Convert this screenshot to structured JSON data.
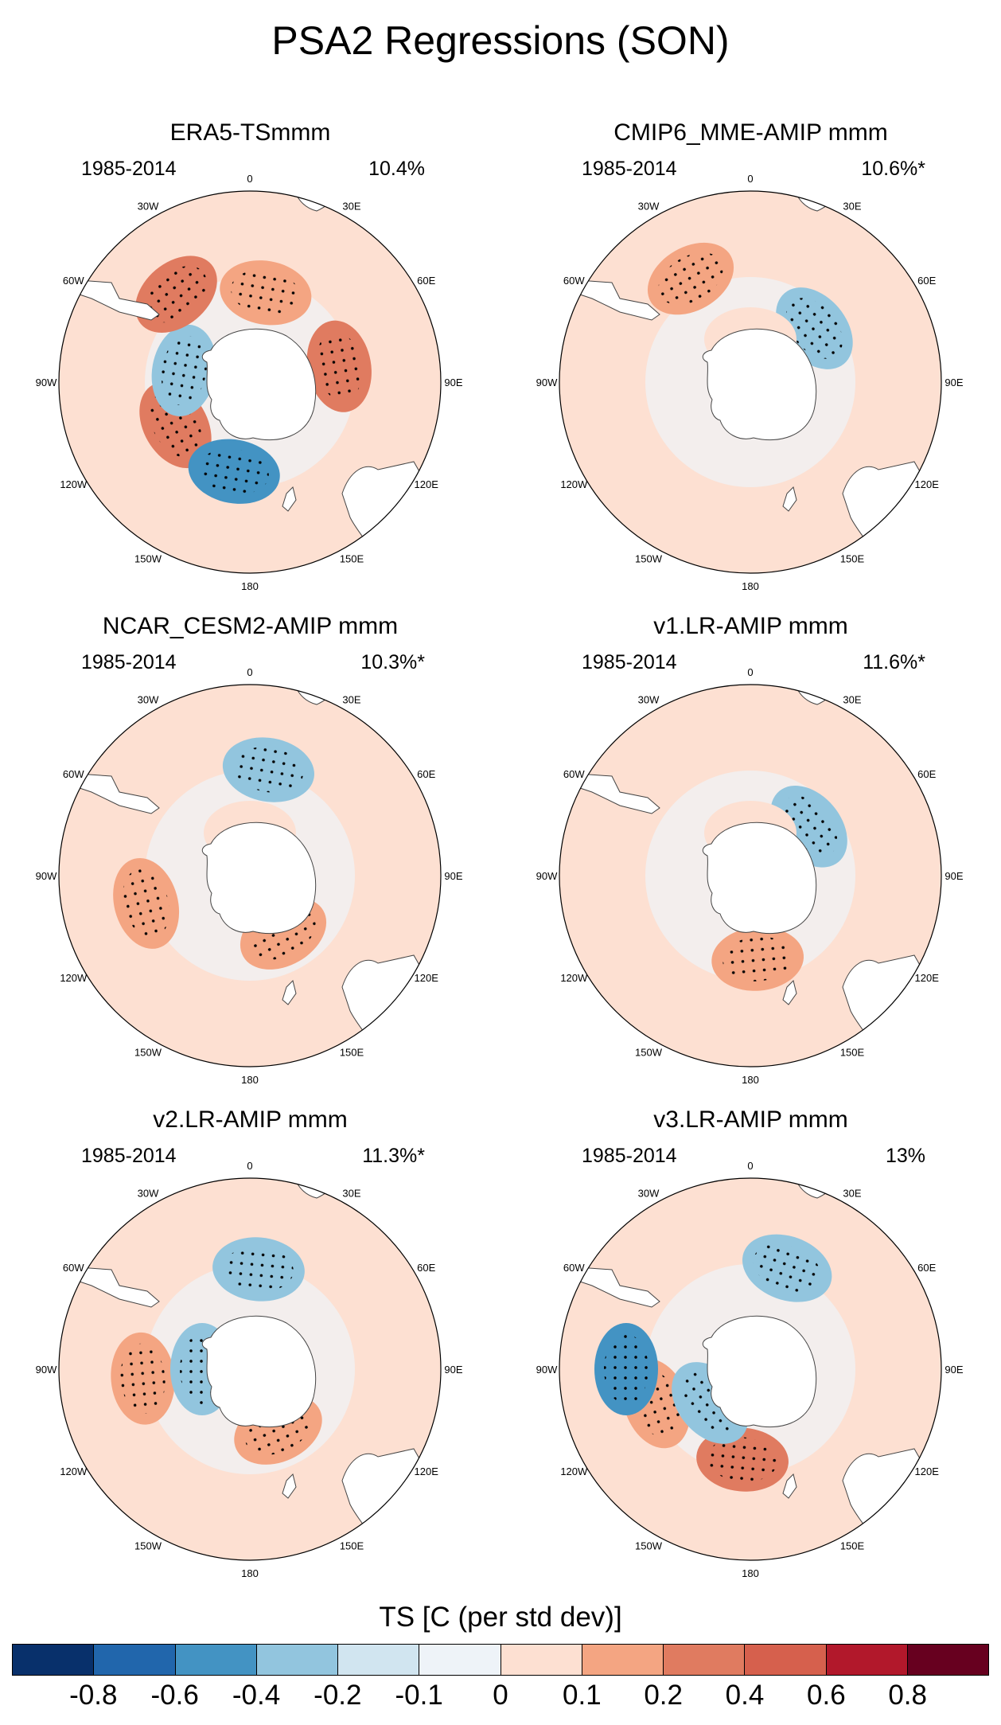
{
  "title": "PSA2 Regressions (SON)",
  "period": "1985-2014",
  "longitude_labels": [
    "0",
    "30E",
    "60E",
    "90E",
    "120E",
    "150E",
    "180",
    "150W",
    "120W",
    "90W",
    "60W",
    "30W"
  ],
  "panels": [
    {
      "title": "ERA5-TSmmm",
      "percent": "10.4%",
      "anomalies": [
        {
          "lon": 240,
          "lat": -54,
          "value": 0.4
        },
        {
          "lon": 280,
          "lat": -62,
          "value": -0.2
        },
        {
          "lon": 190,
          "lat": -52,
          "value": -0.4
        },
        {
          "lon": 80,
          "lat": -52,
          "value": 0.4
        },
        {
          "lon": 320,
          "lat": -42,
          "value": 0.4
        },
        {
          "lon": 10,
          "lat": -52,
          "value": 0.2
        }
      ]
    },
    {
      "title": "CMIP6_MME-AMIP  mmm",
      "percent": "10.6%*",
      "anomalies": [
        {
          "lon": 330,
          "lat": -40,
          "value": 0.2
        },
        {
          "lon": 50,
          "lat": -55,
          "value": -0.2
        },
        {
          "lon": 0,
          "lat": -72,
          "value": 0.1
        }
      ]
    },
    {
      "title": "NCAR_CESM2-AMIP  mmm",
      "percent": "10.3%*",
      "anomalies": [
        {
          "lon": 255,
          "lat": -45,
          "value": 0.2
        },
        {
          "lon": 150,
          "lat": -62,
          "value": 0.2
        },
        {
          "lon": 10,
          "lat": -45,
          "value": -0.2
        },
        {
          "lon": 0,
          "lat": -72,
          "value": 0.1
        }
      ]
    },
    {
      "title": "v1.LR-AMIP  mmm",
      "percent": "11.6%*",
      "anomalies": [
        {
          "lon": 175,
          "lat": -55,
          "value": 0.2
        },
        {
          "lon": 50,
          "lat": -58,
          "value": -0.2
        },
        {
          "lon": 0,
          "lat": -72,
          "value": 0.1
        }
      ]
    },
    {
      "title": "v2.LR-AMIP  mmm",
      "percent": "11.3%*",
      "anomalies": [
        {
          "lon": 265,
          "lat": -45,
          "value": 0.2
        },
        {
          "lon": 155,
          "lat": -62,
          "value": 0.2
        },
        {
          "lon": 5,
          "lat": -48,
          "value": -0.2
        },
        {
          "lon": 270,
          "lat": -70,
          "value": -0.2
        }
      ]
    },
    {
      "title": "v3.LR-AMIP  mmm",
      "percent": "13%",
      "anomalies": [
        {
          "lon": 185,
          "lat": -52,
          "value": 0.4
        },
        {
          "lon": 250,
          "lat": -48,
          "value": 0.2
        },
        {
          "lon": 270,
          "lat": -38,
          "value": -0.4
        },
        {
          "lon": 230,
          "lat": -68,
          "value": -0.2
        },
        {
          "lon": 20,
          "lat": -45,
          "value": -0.2
        }
      ]
    }
  ],
  "colorbar": {
    "title": "TS [C (per std dev)]",
    "labels": [
      "-0.8",
      "-0.6",
      "-0.4",
      "-0.2",
      "-0.1",
      "0",
      "0.1",
      "0.2",
      "0.4",
      "0.6",
      "0.8"
    ],
    "colors": [
      "#08306b",
      "#2166ac",
      "#4393c3",
      "#92c5de",
      "#d1e5f0",
      "#eef3f8",
      "#fde0d2",
      "#f4a582",
      "#e07b60",
      "#d6604d",
      "#b2182b",
      "#67001f"
    ]
  }
}
